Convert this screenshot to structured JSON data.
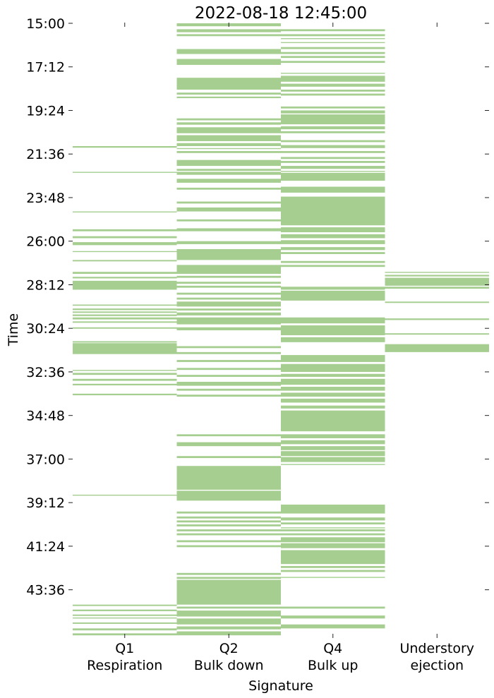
{
  "chart_data": {
    "type": "heatmap",
    "title": "2022-08-18 12:45:00",
    "xlabel": "Signature",
    "ylabel": "Time",
    "grid": false,
    "legend": "none",
    "color": "#a6ce90",
    "y_range_minutes": [
      15.0,
      45.0
    ],
    "ytick_labels": [
      "15:00",
      "17:12",
      "19:24",
      "21:36",
      "23:48",
      "26:00",
      "28:12",
      "30:24",
      "32:36",
      "34:48",
      "37:00",
      "39:12",
      "41:24",
      "43:36"
    ],
    "categories": [
      {
        "line1": "Q1",
        "line2": "Respiration"
      },
      {
        "line1": "Q2",
        "line2": "Bulk down"
      },
      {
        "line1": "Q4",
        "line2": "Bulk up"
      },
      {
        "line1": "Understory",
        "line2": "ejection"
      }
    ],
    "series": [
      {
        "category": "Q1 Respiration",
        "active_intervals": [
          [
            21.2,
            21.28
          ],
          [
            22.5,
            22.55
          ],
          [
            24.5,
            24.55
          ],
          [
            25.4,
            25.5
          ],
          [
            25.75,
            25.85
          ],
          [
            26.05,
            26.2
          ],
          [
            26.5,
            26.55
          ],
          [
            26.95,
            27.02
          ],
          [
            27.55,
            27.65
          ],
          [
            27.8,
            27.88
          ],
          [
            28.0,
            28.45
          ],
          [
            29.2,
            29.26
          ],
          [
            29.4,
            29.48
          ],
          [
            29.55,
            29.62
          ],
          [
            29.7,
            29.78
          ],
          [
            29.85,
            29.95
          ],
          [
            30.05,
            30.12
          ],
          [
            30.35,
            30.42
          ],
          [
            31.05,
            31.12
          ],
          [
            31.15,
            31.7
          ],
          [
            32.5,
            32.55
          ],
          [
            32.65,
            32.75
          ],
          [
            32.95,
            33.05
          ],
          [
            33.2,
            33.28
          ],
          [
            33.7,
            33.78
          ],
          [
            38.8,
            38.85
          ],
          [
            44.35,
            44.42
          ],
          [
            44.6,
            44.68
          ],
          [
            44.85,
            44.92
          ],
          [
            45.0,
            45.05
          ],
          [
            45.25,
            45.32
          ],
          [
            45.55,
            45.65
          ],
          [
            45.8,
            45.9
          ]
        ]
      },
      {
        "category": "Q2 Bulk down",
        "active_intervals": [
          [
            15.0,
            15.15
          ],
          [
            15.3,
            15.45
          ],
          [
            15.55,
            15.65
          ],
          [
            16.3,
            16.55
          ],
          [
            16.8,
            17.1
          ],
          [
            17.75,
            18.35
          ],
          [
            18.5,
            18.6
          ],
          [
            18.7,
            18.78
          ],
          [
            19.8,
            19.9
          ],
          [
            20.0,
            20.12
          ],
          [
            20.25,
            20.55
          ],
          [
            20.65,
            20.95
          ],
          [
            21.05,
            21.2
          ],
          [
            21.3,
            21.35
          ],
          [
            21.45,
            21.55
          ],
          [
            21.9,
            22.2
          ],
          [
            22.35,
            22.45
          ],
          [
            22.5,
            22.65
          ],
          [
            22.85,
            23.05
          ],
          [
            23.3,
            23.4
          ],
          [
            24.0,
            24.1
          ],
          [
            24.3,
            24.5
          ],
          [
            24.9,
            25.0
          ],
          [
            25.35,
            25.5
          ],
          [
            26.0,
            26.15
          ],
          [
            26.4,
            26.95
          ],
          [
            27.2,
            27.65
          ],
          [
            27.75,
            27.85
          ],
          [
            28.05,
            28.15
          ],
          [
            28.25,
            28.35
          ],
          [
            28.6,
            28.7
          ],
          [
            28.85,
            28.95
          ],
          [
            29.05,
            29.3
          ],
          [
            29.4,
            29.5
          ],
          [
            29.6,
            29.75
          ],
          [
            29.85,
            30.2
          ],
          [
            30.35,
            30.5
          ],
          [
            31.3,
            31.4
          ],
          [
            31.6,
            31.7
          ],
          [
            32.0,
            32.1
          ],
          [
            32.4,
            32.5
          ],
          [
            32.75,
            32.85
          ],
          [
            33.1,
            33.3
          ],
          [
            33.45,
            33.55
          ],
          [
            33.75,
            33.85
          ],
          [
            35.75,
            35.85
          ],
          [
            36.15,
            36.35
          ],
          [
            36.85,
            36.95
          ],
          [
            37.35,
            38.55
          ],
          [
            38.6,
            39.1
          ],
          [
            39.65,
            39.75
          ],
          [
            39.9,
            40.0
          ],
          [
            40.1,
            40.2
          ],
          [
            40.3,
            40.4
          ],
          [
            40.55,
            40.65
          ],
          [
            40.75,
            40.85
          ],
          [
            41.1,
            41.2
          ],
          [
            41.35,
            41.45
          ],
          [
            42.75,
            42.85
          ],
          [
            42.95,
            43.05
          ],
          [
            43.1,
            44.35
          ],
          [
            44.45,
            44.55
          ],
          [
            44.65,
            44.95
          ],
          [
            45.05,
            45.35
          ],
          [
            45.45,
            45.6
          ],
          [
            45.7,
            45.9
          ]
        ]
      },
      {
        "category": "Q4 Bulk up",
        "active_intervals": [
          [
            15.3,
            15.4
          ],
          [
            15.55,
            15.65
          ],
          [
            15.75,
            15.8
          ],
          [
            15.95,
            16.0
          ],
          [
            16.2,
            16.3
          ],
          [
            16.45,
            16.55
          ],
          [
            16.65,
            16.75
          ],
          [
            16.9,
            17.0
          ],
          [
            17.5,
            17.55
          ],
          [
            17.65,
            17.95
          ],
          [
            18.05,
            18.2
          ],
          [
            18.35,
            18.45
          ],
          [
            18.55,
            18.65
          ],
          [
            19.2,
            19.3
          ],
          [
            19.4,
            19.55
          ],
          [
            19.6,
            20.1
          ],
          [
            20.2,
            20.35
          ],
          [
            20.45,
            20.55
          ],
          [
            20.9,
            21.0
          ],
          [
            21.15,
            21.3
          ],
          [
            21.45,
            21.55
          ],
          [
            21.75,
            21.85
          ],
          [
            21.95,
            22.05
          ],
          [
            22.2,
            22.35
          ],
          [
            22.45,
            22.5
          ],
          [
            22.55,
            22.95
          ],
          [
            23.25,
            23.55
          ],
          [
            23.75,
            25.2
          ],
          [
            25.3,
            25.55
          ],
          [
            25.65,
            25.85
          ],
          [
            25.95,
            26.15
          ],
          [
            26.3,
            26.45
          ],
          [
            26.55,
            26.65
          ],
          [
            27.0,
            27.1
          ],
          [
            27.2,
            27.3
          ],
          [
            28.3,
            28.45
          ],
          [
            28.5,
            29.0
          ],
          [
            29.85,
            30.15
          ],
          [
            30.25,
            30.75
          ],
          [
            30.85,
            31.1
          ],
          [
            31.75,
            32.1
          ],
          [
            32.2,
            32.6
          ],
          [
            32.7,
            32.85
          ],
          [
            32.95,
            33.25
          ],
          [
            33.35,
            33.55
          ],
          [
            33.65,
            33.85
          ],
          [
            33.95,
            34.15
          ],
          [
            34.3,
            34.45
          ],
          [
            34.55,
            35.6
          ],
          [
            35.75,
            35.95
          ],
          [
            36.05,
            36.25
          ],
          [
            36.35,
            36.55
          ],
          [
            36.6,
            36.85
          ],
          [
            36.9,
            37.15
          ],
          [
            37.25,
            37.3
          ],
          [
            39.3,
            39.75
          ],
          [
            39.95,
            40.1
          ],
          [
            40.2,
            40.3
          ],
          [
            40.45,
            40.5
          ],
          [
            40.55,
            40.65
          ],
          [
            40.75,
            40.85
          ],
          [
            40.95,
            41.2
          ],
          [
            41.25,
            41.5
          ],
          [
            41.6,
            42.3
          ],
          [
            42.4,
            42.5
          ],
          [
            42.6,
            42.7
          ],
          [
            42.95,
            43.0
          ],
          [
            44.45,
            44.55
          ],
          [
            44.9,
            45.05
          ],
          [
            45.35,
            45.55
          ]
        ]
      },
      {
        "category": "Understory ejection",
        "active_intervals": [
          [
            27.55,
            27.6
          ],
          [
            27.7,
            27.78
          ],
          [
            27.85,
            28.25
          ],
          [
            28.3,
            28.4
          ],
          [
            29.05,
            29.12
          ],
          [
            29.9,
            29.98
          ],
          [
            30.65,
            30.72
          ],
          [
            31.2,
            31.6
          ]
        ]
      }
    ]
  }
}
